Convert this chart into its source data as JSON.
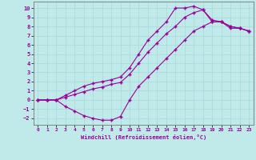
{
  "xlabel": "Windchill (Refroidissement éolien,°C)",
  "xlim": [
    -0.5,
    23.5
  ],
  "ylim": [
    -2.7,
    10.7
  ],
  "xticks": [
    0,
    1,
    2,
    3,
    4,
    5,
    6,
    7,
    8,
    9,
    10,
    11,
    12,
    13,
    14,
    15,
    16,
    17,
    18,
    19,
    20,
    21,
    22,
    23
  ],
  "yticks": [
    -2,
    -1,
    0,
    1,
    2,
    3,
    4,
    5,
    6,
    7,
    8,
    9,
    10
  ],
  "bg_color": "#c0eaea",
  "grid_color": "#a8d8d8",
  "line_color": "#990099",
  "marker": "+",
  "line1_x": [
    0,
    1,
    2,
    3,
    4,
    5,
    6,
    7,
    8,
    9,
    10,
    11,
    12,
    13,
    14,
    15,
    16,
    17,
    18,
    19,
    20,
    21,
    22,
    23
  ],
  "line1_y": [
    0,
    0,
    0,
    -0.7,
    -1.2,
    -1.7,
    -2.0,
    -2.2,
    -2.2,
    -1.8,
    0.0,
    1.5,
    2.5,
    3.5,
    4.5,
    5.5,
    6.5,
    7.5,
    8.0,
    8.5,
    8.5,
    8.0,
    7.8,
    7.5
  ],
  "line2_x": [
    0,
    1,
    2,
    3,
    4,
    5,
    6,
    7,
    8,
    9,
    10,
    11,
    12,
    13,
    14,
    15,
    16,
    17,
    18,
    19,
    20,
    21,
    22,
    23
  ],
  "line2_y": [
    0,
    0,
    0,
    0.5,
    1.0,
    1.5,
    1.8,
    2.0,
    2.2,
    2.5,
    3.5,
    5.0,
    6.5,
    7.5,
    8.5,
    10.0,
    10.0,
    10.2,
    9.8,
    8.5,
    8.5,
    8.0,
    7.8,
    7.5
  ],
  "line3_x": [
    0,
    1,
    2,
    3,
    4,
    5,
    6,
    7,
    8,
    9,
    10,
    11,
    12,
    13,
    14,
    15,
    16,
    17,
    18,
    19,
    20,
    21,
    22,
    23
  ],
  "line3_y": [
    0,
    0,
    0,
    0.3,
    0.6,
    0.9,
    1.2,
    1.4,
    1.7,
    1.9,
    2.8,
    4.0,
    5.2,
    6.2,
    7.2,
    8.0,
    9.0,
    9.5,
    9.8,
    8.7,
    8.5,
    7.8,
    7.8,
    7.5
  ]
}
